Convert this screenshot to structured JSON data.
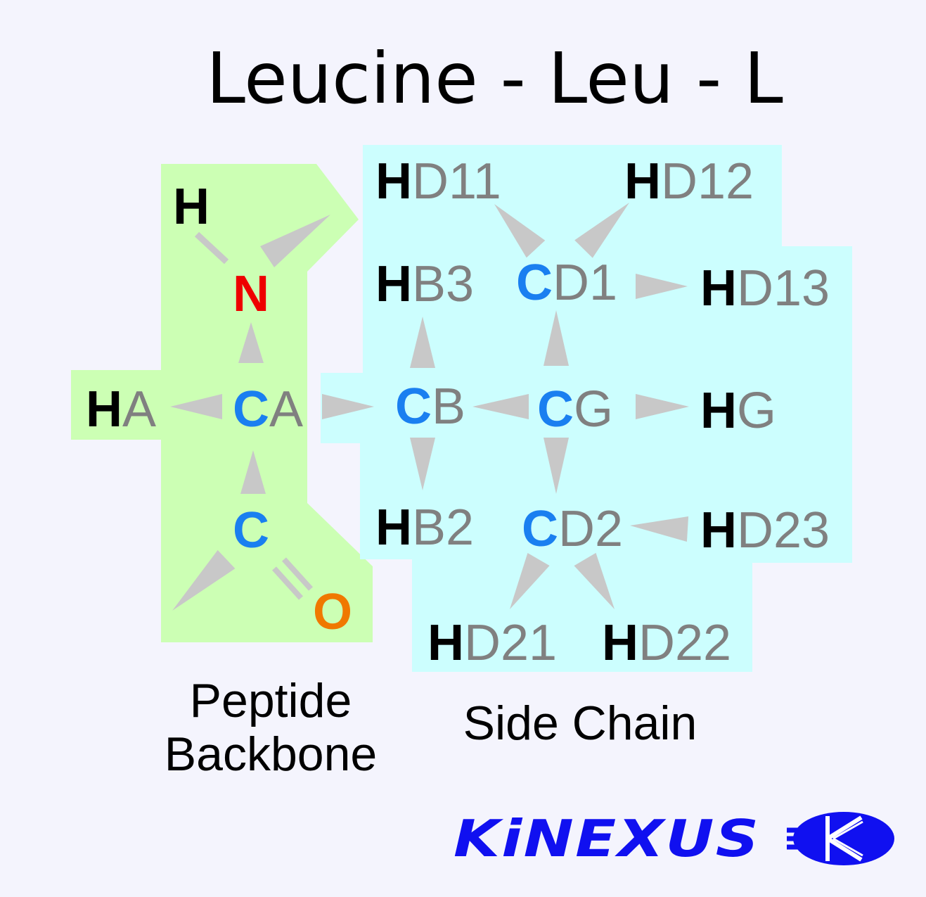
{
  "title": "Leucine - Leu - L",
  "colors": {
    "backbone_region": "#ccffb4",
    "side_chain_region": "#ccfefe",
    "hydrogen": "#000000",
    "carbon": "#1a7ff0",
    "nitrogen": "#ee0000",
    "oxygen": "#f07800",
    "suffix": "#808080",
    "bond": "#c8c8c8",
    "logo": "#1010f0"
  },
  "atoms": {
    "h": {
      "element": "H",
      "suffix": ""
    },
    "n": {
      "element": "N",
      "suffix": ""
    },
    "ha": {
      "element": "H",
      "suffix": "A"
    },
    "ca": {
      "element": "C",
      "suffix": "A"
    },
    "c": {
      "element": "C",
      "suffix": ""
    },
    "o": {
      "element": "O",
      "suffix": ""
    },
    "cb": {
      "element": "C",
      "suffix": "B"
    },
    "cg": {
      "element": "C",
      "suffix": "G"
    },
    "hg": {
      "element": "H",
      "suffix": "G"
    },
    "hb3": {
      "element": "H",
      "suffix": "B3"
    },
    "hb2": {
      "element": "H",
      "suffix": "B2"
    },
    "cd1": {
      "element": "C",
      "suffix": "D1"
    },
    "cd2": {
      "element": "C",
      "suffix": "D2"
    },
    "hd11": {
      "element": "H",
      "suffix": "D11"
    },
    "hd12": {
      "element": "H",
      "suffix": "D12"
    },
    "hd13": {
      "element": "H",
      "suffix": "D13"
    },
    "hd21": {
      "element": "H",
      "suffix": "D21"
    },
    "hd22": {
      "element": "H",
      "suffix": "D22"
    },
    "hd23": {
      "element": "H",
      "suffix": "D23"
    }
  },
  "regions": {
    "backbone_label_line1": "Peptide",
    "backbone_label_line2": "Backbone",
    "side_chain_label": "Side Chain"
  },
  "logo": {
    "text": "KiNEXUS",
    "icon": "kinexus-k-emblem-icon"
  }
}
